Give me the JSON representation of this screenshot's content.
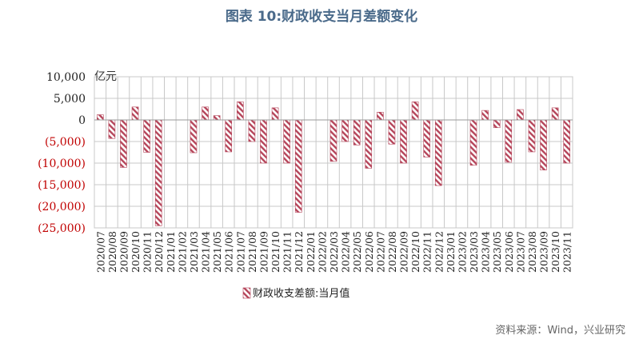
{
  "title": "图表 10:财政收支当月差额变化",
  "source": "资料来源：Wind，兴业研究",
  "colors": {
    "bar": "#b5455a",
    "negative_tick": "#c00000",
    "title": "#4a6a8a"
  },
  "chart_data": {
    "type": "bar",
    "unit": "亿元",
    "ylim": [
      -25000,
      10000
    ],
    "yticks": [
      10000,
      5000,
      0,
      -5000,
      -10000,
      -15000,
      -20000,
      -25000
    ],
    "ytick_labels": [
      "10,000",
      "5,000",
      "0",
      "(5,000)",
      "(10,000)",
      "(15,000)",
      "(20,000)",
      "(25,000)"
    ],
    "grid": true,
    "legend_position": "bottom",
    "categories": [
      "2020/07",
      "2020/08",
      "2020/09",
      "2020/10",
      "2020/11",
      "2020/12",
      "2021/01",
      "2021/02",
      "2021/03",
      "2021/04",
      "2021/05",
      "2021/06",
      "2021/07",
      "2021/08",
      "2021/09",
      "2021/10",
      "2021/11",
      "2021/12",
      "2022/01",
      "2022/02",
      "2022/03",
      "2022/04",
      "2022/05",
      "2022/06",
      "2022/07",
      "2022/08",
      "2022/09",
      "2022/10",
      "2022/11",
      "2022/12",
      "2023/01",
      "2023/02",
      "2023/03",
      "2023/04",
      "2023/05",
      "2023/06",
      "2023/07",
      "2023/08",
      "2023/09",
      "2023/10",
      "2023/11"
    ],
    "series": [
      {
        "name": "财政收支差额:当月值",
        "values": [
          1200,
          -4300,
          -11000,
          3000,
          -7500,
          -24500,
          null,
          null,
          -7600,
          3000,
          1000,
          -7400,
          4200,
          -5000,
          -10000,
          2800,
          -10000,
          -21400,
          null,
          null,
          -9600,
          -5000,
          -5800,
          -11200,
          1800,
          -5600,
          -10000,
          4200,
          -8600,
          -15200,
          null,
          null,
          -10500,
          2200,
          -1800,
          -9800,
          2400,
          -7400,
          -11600,
          2800,
          -10000
        ]
      }
    ]
  }
}
